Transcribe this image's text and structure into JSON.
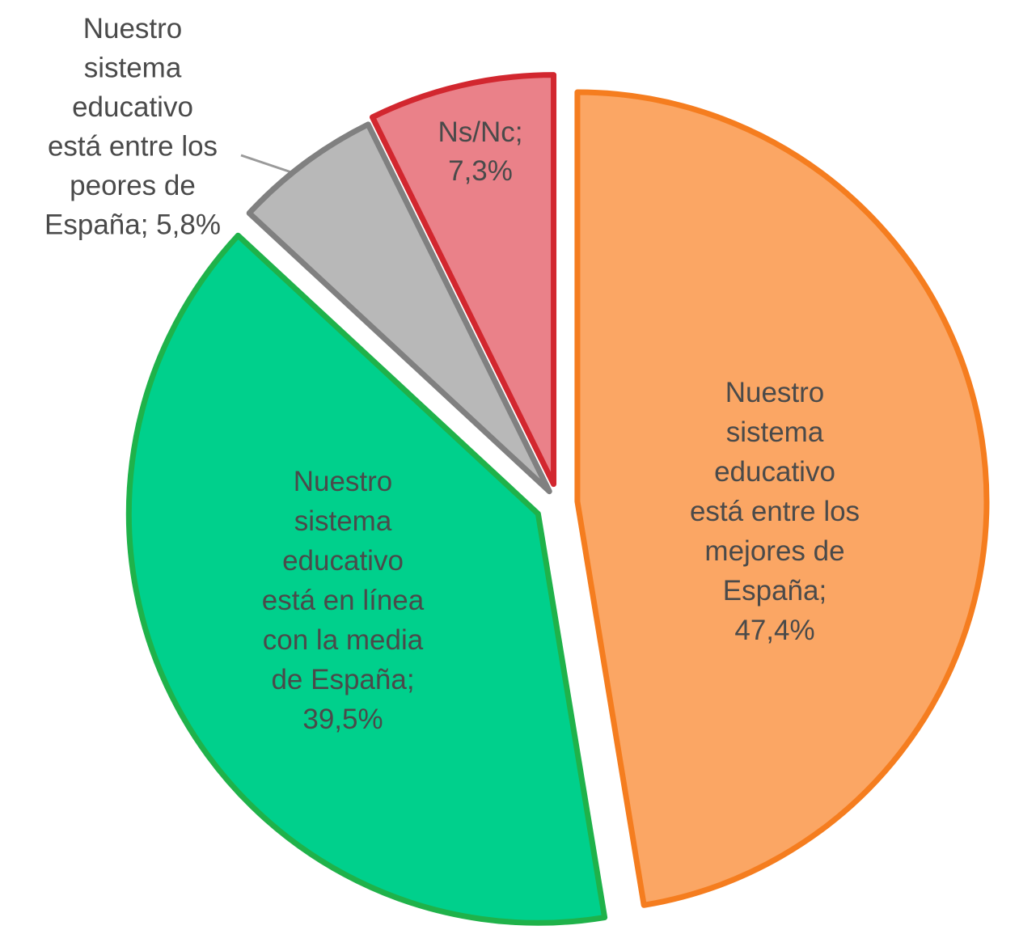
{
  "chart_data": {
    "type": "pie",
    "title": "",
    "exploded": true,
    "start_angle": "top, clockwise",
    "slices": [
      {
        "label_lines": [
          "Nuestro",
          "sistema",
          "educativo",
          "está entre los",
          "mejores de",
          "España;",
          "47,4%"
        ],
        "value": 47.4,
        "fill": "#fba664",
        "stroke": "#f57d1f"
      },
      {
        "label_lines": [
          "Nuestro",
          "sistema",
          "educativo",
          "está en línea",
          "con la media",
          "de España;",
          "39,5%"
        ],
        "value": 39.5,
        "fill": "#00d08c",
        "stroke": "#1fb24a"
      },
      {
        "label_lines": [
          "Nuestro",
          "sistema",
          "educativo",
          "está entre los",
          "peores de",
          "España; 5,8%"
        ],
        "value": 5.8,
        "fill": "#b8b8b8",
        "stroke": "#808080"
      },
      {
        "label_lines": [
          "Ns/Nc;",
          "7,3%"
        ],
        "value": 7.3,
        "fill": "#ea8189",
        "stroke": "#d2272f"
      }
    ]
  }
}
